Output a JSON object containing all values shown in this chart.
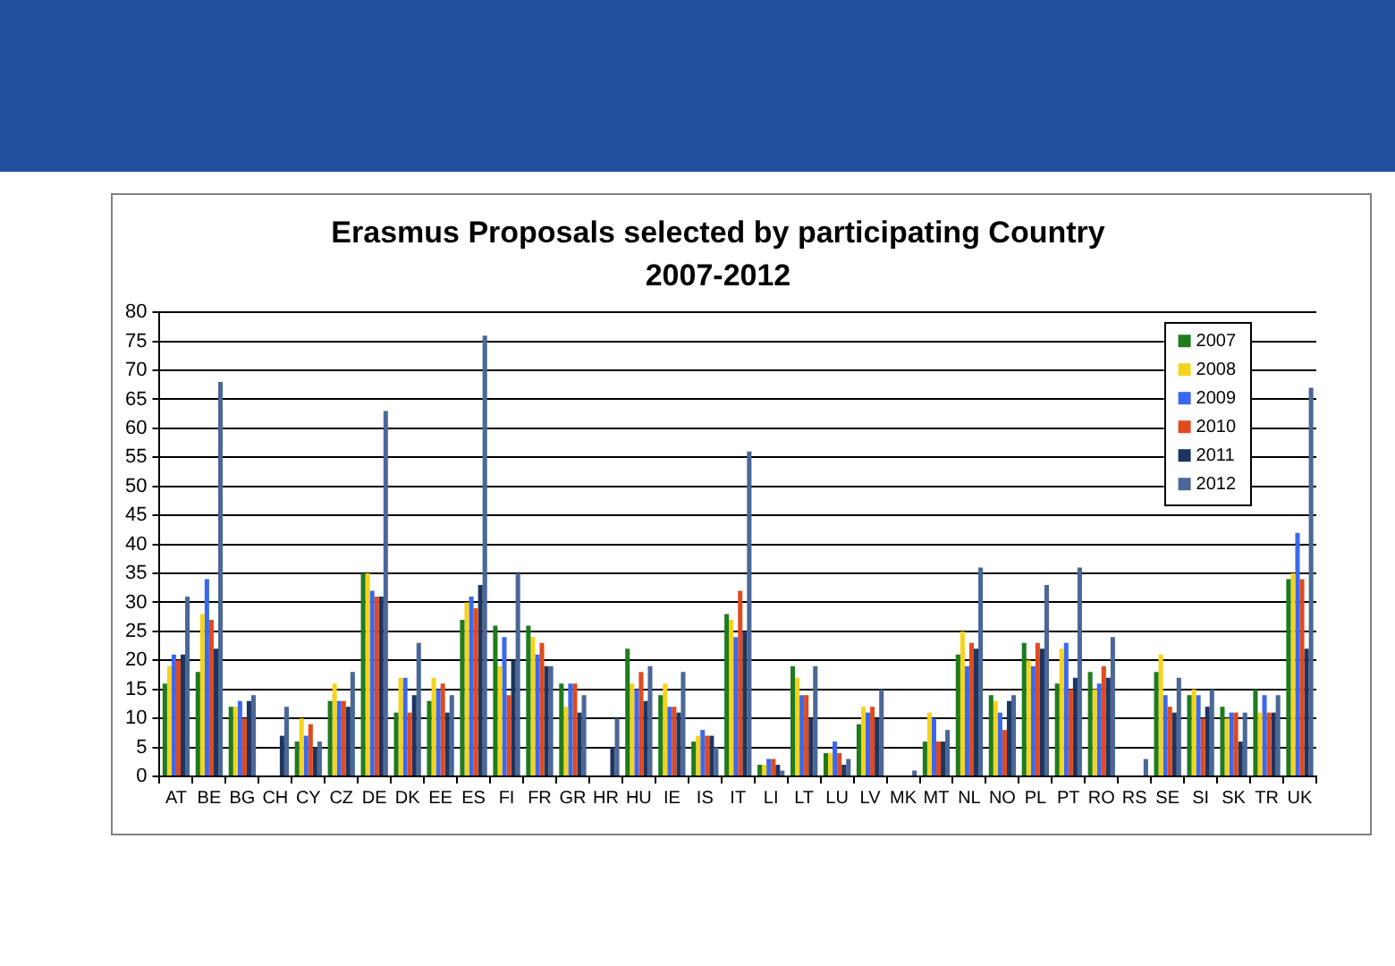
{
  "chart_data": {
    "type": "bar",
    "title": "Erasmus Proposals selected by participating Country\n2007-2012",
    "categories": [
      "AT",
      "BE",
      "BG",
      "CH",
      "CY",
      "CZ",
      "DE",
      "DK",
      "EE",
      "ES",
      "FI",
      "FR",
      "GR",
      "HR",
      "HU",
      "IE",
      "IS",
      "IT",
      "LI",
      "LT",
      "LU",
      "LV",
      "MK",
      "MT",
      "NL",
      "NO",
      "PL",
      "PT",
      "RO",
      "RS",
      "SE",
      "SI",
      "SK",
      "TR",
      "UK"
    ],
    "series": [
      {
        "name": "2007",
        "color": "#1e7b1e",
        "values": [
          16,
          18,
          12,
          null,
          6,
          13,
          35,
          11,
          13,
          27,
          26,
          26,
          16,
          null,
          22,
          14,
          6,
          28,
          2,
          19,
          4,
          9,
          null,
          6,
          21,
          14,
          23,
          16,
          18,
          null,
          18,
          14,
          12,
          15,
          34
        ]
      },
      {
        "name": "2008",
        "color": "#f5d31c",
        "values": [
          19,
          28,
          12,
          null,
          10,
          16,
          35,
          17,
          17,
          30,
          19,
          24,
          12,
          null,
          16,
          16,
          7,
          27,
          2,
          17,
          4,
          12,
          null,
          11,
          25,
          13,
          20,
          22,
          15,
          null,
          21,
          15,
          10,
          11,
          35
        ]
      },
      {
        "name": "2009",
        "color": "#3a68f0",
        "values": [
          21,
          34,
          13,
          null,
          7,
          13,
          32,
          17,
          15,
          31,
          24,
          21,
          16,
          null,
          15,
          12,
          8,
          24,
          3,
          14,
          6,
          11,
          null,
          10,
          19,
          11,
          19,
          23,
          16,
          null,
          14,
          14,
          11,
          14,
          42
        ]
      },
      {
        "name": "2010",
        "color": "#e04a1e",
        "values": [
          20,
          27,
          10,
          null,
          9,
          13,
          31,
          11,
          16,
          29,
          14,
          23,
          16,
          null,
          18,
          12,
          7,
          32,
          3,
          14,
          4,
          12,
          null,
          6,
          23,
          8,
          23,
          15,
          19,
          null,
          12,
          10,
          11,
          11,
          34
        ]
      },
      {
        "name": "2011",
        "color": "#1c3560",
        "values": [
          21,
          22,
          13,
          7,
          5,
          12,
          31,
          14,
          11,
          33,
          20,
          19,
          11,
          5,
          13,
          11,
          7,
          25,
          2,
          10,
          2,
          10,
          null,
          6,
          22,
          13,
          22,
          17,
          17,
          null,
          11,
          12,
          6,
          11,
          22
        ]
      },
      {
        "name": "2012",
        "color": "#4a6797",
        "values": [
          31,
          68,
          14,
          12,
          6,
          18,
          63,
          23,
          14,
          76,
          35,
          19,
          14,
          10,
          19,
          18,
          5,
          56,
          1,
          19,
          3,
          15,
          1,
          8,
          36,
          14,
          33,
          36,
          24,
          3,
          17,
          15,
          11,
          14,
          67
        ]
      }
    ],
    "ylim": [
      0,
      80
    ],
    "yticks": [
      0,
      5,
      10,
      15,
      20,
      25,
      30,
      35,
      40,
      45,
      50,
      55,
      60,
      65,
      70,
      75,
      80
    ],
    "grid": "y",
    "legend": "top right"
  }
}
